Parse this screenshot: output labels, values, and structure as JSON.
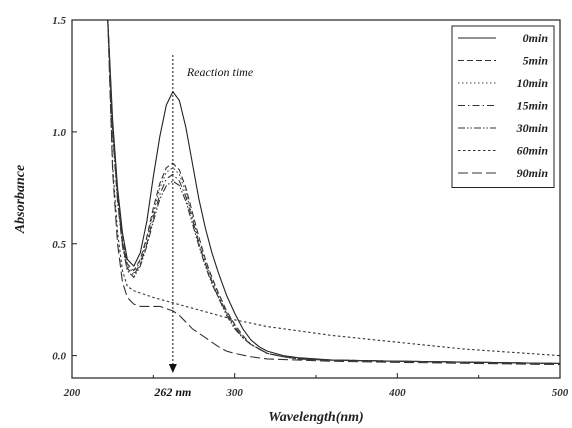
{
  "chart_data": {
    "type": "line",
    "xlabel": "Wavelength(nm)",
    "ylabel": "Absorbance",
    "xlim": [
      200,
      500
    ],
    "ylim": [
      -0.1,
      1.5
    ],
    "x_ticks": [
      200,
      300,
      400,
      500
    ],
    "y_ticks": [
      0.0,
      0.5,
      1.0,
      1.5
    ],
    "y_tick_labels": [
      "0.0",
      "0.5",
      "1.0",
      "1.5"
    ],
    "grid": false,
    "legend_position": "top-right",
    "annotations": {
      "reaction_time": "Reaction time",
      "peak_label": "262 nm",
      "peak_x": 262
    },
    "series": [
      {
        "name": "0min",
        "dash": "solid",
        "color": "#222222",
        "x": [
          222,
          225,
          228,
          231,
          234,
          238,
          242,
          246,
          250,
          254,
          258,
          262,
          266,
          270,
          274,
          278,
          282,
          286,
          290,
          295,
          300,
          305,
          310,
          315,
          320,
          330,
          340,
          360,
          400,
          450,
          500
        ],
        "y": [
          1.5,
          1.05,
          0.75,
          0.55,
          0.43,
          0.4,
          0.46,
          0.6,
          0.8,
          0.98,
          1.12,
          1.18,
          1.14,
          1.02,
          0.86,
          0.7,
          0.57,
          0.46,
          0.37,
          0.27,
          0.19,
          0.12,
          0.07,
          0.04,
          0.02,
          0.0,
          -0.01,
          -0.02,
          -0.025,
          -0.03,
          -0.035
        ]
      },
      {
        "name": "5min",
        "dash": "dashed",
        "color": "#333333",
        "x": [
          222,
          225,
          228,
          231,
          234,
          238,
          242,
          246,
          250,
          254,
          258,
          262,
          266,
          270,
          274,
          278,
          282,
          286,
          290,
          295,
          300,
          305,
          310,
          315,
          320,
          330,
          340,
          360,
          400,
          450,
          500
        ],
        "y": [
          1.5,
          1.02,
          0.72,
          0.52,
          0.41,
          0.38,
          0.43,
          0.53,
          0.66,
          0.77,
          0.84,
          0.86,
          0.83,
          0.75,
          0.64,
          0.53,
          0.43,
          0.35,
          0.28,
          0.2,
          0.14,
          0.09,
          0.05,
          0.03,
          0.01,
          -0.005,
          -0.015,
          -0.02,
          -0.025,
          -0.03,
          -0.035
        ]
      },
      {
        "name": "10min",
        "dash": "dotted",
        "color": "#444444",
        "x": [
          222,
          225,
          228,
          231,
          234,
          238,
          242,
          246,
          250,
          254,
          258,
          262,
          266,
          270,
          274,
          278,
          282,
          286,
          290,
          295,
          300,
          305,
          310,
          315,
          320,
          330,
          340,
          360,
          400,
          450,
          500
        ],
        "y": [
          1.5,
          1.01,
          0.71,
          0.51,
          0.4,
          0.37,
          0.42,
          0.52,
          0.64,
          0.75,
          0.82,
          0.84,
          0.81,
          0.73,
          0.62,
          0.51,
          0.42,
          0.34,
          0.27,
          0.19,
          0.13,
          0.08,
          0.05,
          0.03,
          0.01,
          -0.005,
          -0.015,
          -0.02,
          -0.025,
          -0.03,
          -0.035
        ]
      },
      {
        "name": "15min",
        "dash": "dashdot",
        "color": "#333333",
        "x": [
          222,
          225,
          228,
          231,
          234,
          238,
          242,
          246,
          250,
          254,
          258,
          262,
          266,
          270,
          274,
          278,
          282,
          286,
          290,
          295,
          300,
          305,
          310,
          315,
          320,
          330,
          340,
          360,
          400,
          450,
          500
        ],
        "y": [
          1.5,
          1.0,
          0.7,
          0.5,
          0.39,
          0.36,
          0.41,
          0.5,
          0.62,
          0.72,
          0.79,
          0.81,
          0.78,
          0.71,
          0.61,
          0.5,
          0.41,
          0.33,
          0.26,
          0.19,
          0.13,
          0.08,
          0.05,
          0.03,
          0.01,
          -0.005,
          -0.015,
          -0.02,
          -0.025,
          -0.03,
          -0.035
        ]
      },
      {
        "name": "30min",
        "dash": "dashdotdot",
        "color": "#333333",
        "x": [
          222,
          225,
          228,
          231,
          234,
          238,
          242,
          246,
          250,
          254,
          258,
          262,
          266,
          270,
          274,
          278,
          282,
          286,
          290,
          295,
          300,
          305,
          310,
          315,
          320,
          330,
          340,
          360,
          400,
          450,
          500
        ],
        "y": [
          1.5,
          0.99,
          0.69,
          0.49,
          0.38,
          0.35,
          0.4,
          0.49,
          0.6,
          0.7,
          0.76,
          0.78,
          0.76,
          0.69,
          0.59,
          0.49,
          0.4,
          0.32,
          0.26,
          0.18,
          0.12,
          0.08,
          0.05,
          0.03,
          0.01,
          -0.005,
          -0.015,
          -0.02,
          -0.025,
          -0.03,
          -0.035
        ]
      },
      {
        "name": "60min",
        "dash": "shortdash",
        "color": "#333333",
        "x": [
          222,
          225,
          228,
          231,
          234,
          238,
          242,
          246,
          250,
          260,
          270,
          280,
          290,
          300,
          320,
          340,
          360,
          380,
          400,
          420,
          440,
          460,
          480,
          500
        ],
        "y": [
          1.5,
          0.85,
          0.55,
          0.38,
          0.31,
          0.29,
          0.28,
          0.27,
          0.26,
          0.24,
          0.22,
          0.2,
          0.18,
          0.16,
          0.13,
          0.11,
          0.09,
          0.075,
          0.06,
          0.045,
          0.03,
          0.02,
          0.01,
          0.0
        ]
      },
      {
        "name": "90min",
        "dash": "longdash",
        "color": "#333333",
        "x": [
          222,
          225,
          228,
          231,
          234,
          238,
          242,
          246,
          250,
          254,
          258,
          262,
          266,
          270,
          274,
          278,
          282,
          286,
          290,
          295,
          300,
          310,
          320,
          340,
          360,
          400,
          450,
          500
        ],
        "y": [
          1.5,
          0.82,
          0.5,
          0.33,
          0.26,
          0.23,
          0.22,
          0.22,
          0.22,
          0.22,
          0.21,
          0.2,
          0.18,
          0.15,
          0.12,
          0.1,
          0.08,
          0.06,
          0.04,
          0.02,
          0.01,
          -0.005,
          -0.015,
          -0.02,
          -0.025,
          -0.03,
          -0.035,
          -0.04
        ]
      }
    ]
  }
}
